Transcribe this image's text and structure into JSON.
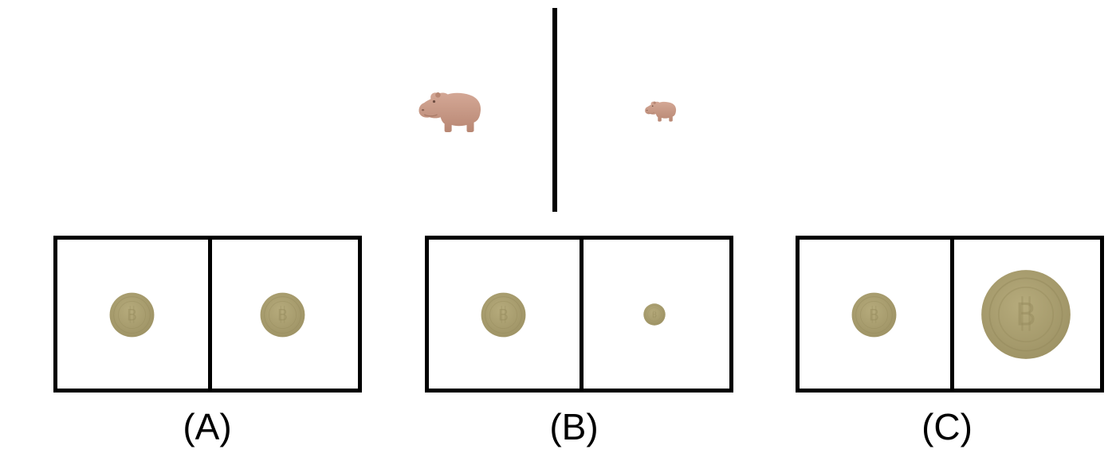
{
  "reference": {
    "left_object": "hippo-icon",
    "right_object": "hippo-icon",
    "object_color": "#c79a86"
  },
  "options": [
    {
      "label": "(A)",
      "left_object": "coin-icon",
      "right_object": "coin-icon"
    },
    {
      "label": "(B)",
      "left_object": "coin-icon",
      "right_object": "coin-icon"
    },
    {
      "label": "(C)",
      "left_object": "coin-icon",
      "right_object": "coin-icon"
    }
  ],
  "colors": {
    "coin": "#a99e6f",
    "coin_edge": "#9b9062",
    "frame": "#000000"
  }
}
